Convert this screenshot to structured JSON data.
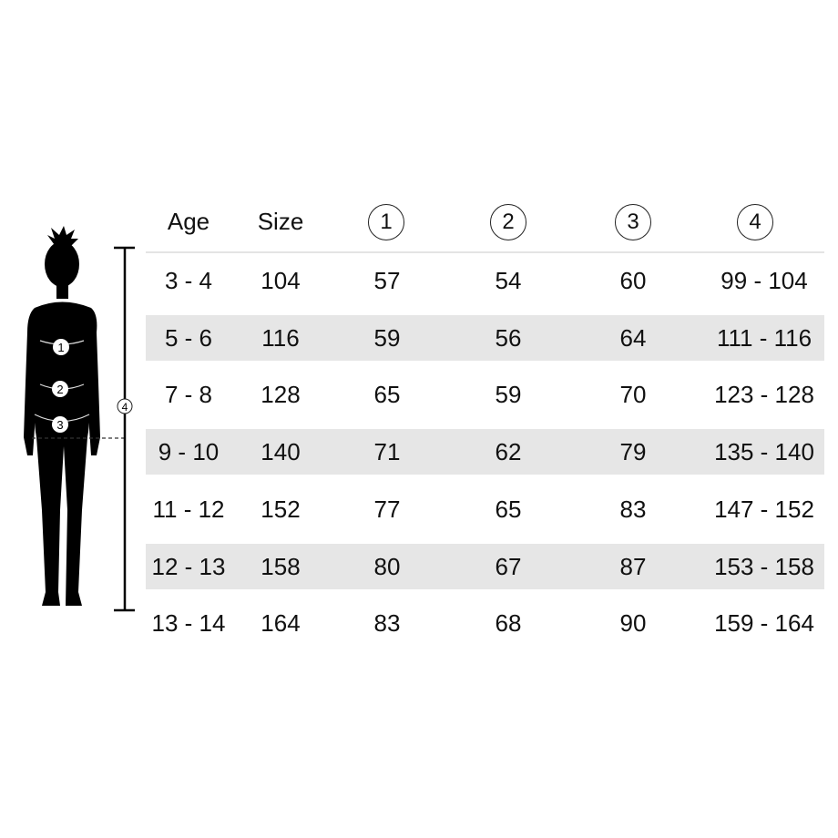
{
  "headers": {
    "age": "Age",
    "size": "Size",
    "m1": "1",
    "m2": "2",
    "m3": "3",
    "m4": "4"
  },
  "figure": {
    "markers": [
      "1",
      "2",
      "3",
      "4"
    ]
  },
  "rows": [
    {
      "age": "3 - 4",
      "size": "104",
      "m1": "57",
      "m2": "54",
      "m3": "60",
      "m4": "99 - 104"
    },
    {
      "age": "5 - 6",
      "size": "116",
      "m1": "59",
      "m2": "56",
      "m3": "64",
      "m4": "111 - 116"
    },
    {
      "age": "7 - 8",
      "size": "128",
      "m1": "65",
      "m2": "59",
      "m3": "70",
      "m4": "123 - 128"
    },
    {
      "age": "9 - 10",
      "size": "140",
      "m1": "71",
      "m2": "62",
      "m3": "79",
      "m4": "135 - 140"
    },
    {
      "age": "11 - 12",
      "size": "152",
      "m1": "77",
      "m2": "65",
      "m3": "83",
      "m4": "147 - 152"
    },
    {
      "age": "12 - 13",
      "size": "158",
      "m1": "80",
      "m2": "67",
      "m3": "87",
      "m4": "153 - 158"
    },
    {
      "age": "13 - 14",
      "size": "164",
      "m1": "83",
      "m2": "68",
      "m3": "90",
      "m4": "159 - 164"
    }
  ],
  "colors": {
    "shaded_row": "#e6e6e6",
    "text": "#111111"
  }
}
